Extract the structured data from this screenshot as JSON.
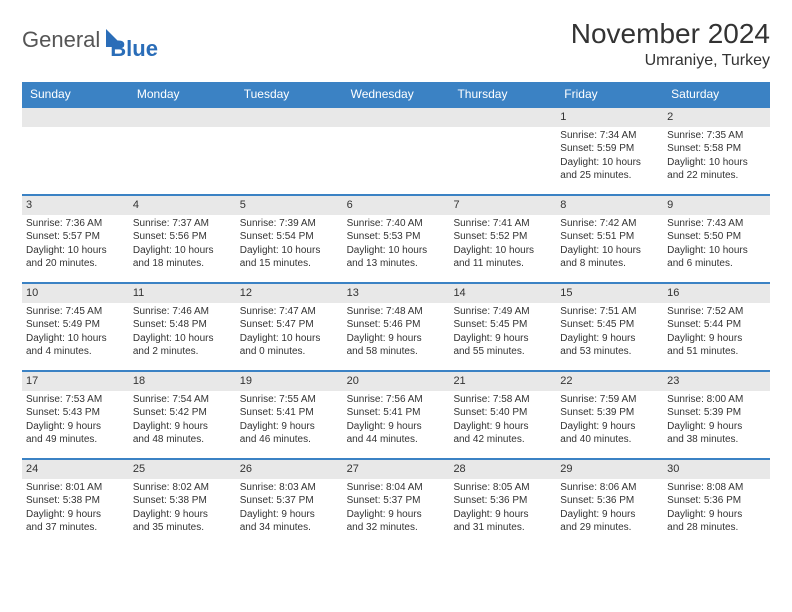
{
  "logo": {
    "general": "General",
    "blue": "Blue"
  },
  "title": "November 2024",
  "location": "Umraniye, Turkey",
  "colors": {
    "header_bg": "#3b82c4",
    "header_text": "#ffffff",
    "daynum_bg": "#e8e8e8",
    "border": "#3b82c4",
    "text": "#333333",
    "logo_blue": "#2a6db8"
  },
  "fonts": {
    "title_size": 28,
    "location_size": 16,
    "header_size": 12,
    "daynum_size": 11,
    "body_size": 10
  },
  "dayNames": [
    "Sunday",
    "Monday",
    "Tuesday",
    "Wednesday",
    "Thursday",
    "Friday",
    "Saturday"
  ],
  "weeks": [
    [
      null,
      null,
      null,
      null,
      null,
      {
        "n": "1",
        "sr": "Sunrise: 7:34 AM",
        "ss": "Sunset: 5:59 PM",
        "d1": "Daylight: 10 hours",
        "d2": "and 25 minutes."
      },
      {
        "n": "2",
        "sr": "Sunrise: 7:35 AM",
        "ss": "Sunset: 5:58 PM",
        "d1": "Daylight: 10 hours",
        "d2": "and 22 minutes."
      }
    ],
    [
      {
        "n": "3",
        "sr": "Sunrise: 7:36 AM",
        "ss": "Sunset: 5:57 PM",
        "d1": "Daylight: 10 hours",
        "d2": "and 20 minutes."
      },
      {
        "n": "4",
        "sr": "Sunrise: 7:37 AM",
        "ss": "Sunset: 5:56 PM",
        "d1": "Daylight: 10 hours",
        "d2": "and 18 minutes."
      },
      {
        "n": "5",
        "sr": "Sunrise: 7:39 AM",
        "ss": "Sunset: 5:54 PM",
        "d1": "Daylight: 10 hours",
        "d2": "and 15 minutes."
      },
      {
        "n": "6",
        "sr": "Sunrise: 7:40 AM",
        "ss": "Sunset: 5:53 PM",
        "d1": "Daylight: 10 hours",
        "d2": "and 13 minutes."
      },
      {
        "n": "7",
        "sr": "Sunrise: 7:41 AM",
        "ss": "Sunset: 5:52 PM",
        "d1": "Daylight: 10 hours",
        "d2": "and 11 minutes."
      },
      {
        "n": "8",
        "sr": "Sunrise: 7:42 AM",
        "ss": "Sunset: 5:51 PM",
        "d1": "Daylight: 10 hours",
        "d2": "and 8 minutes."
      },
      {
        "n": "9",
        "sr": "Sunrise: 7:43 AM",
        "ss": "Sunset: 5:50 PM",
        "d1": "Daylight: 10 hours",
        "d2": "and 6 minutes."
      }
    ],
    [
      {
        "n": "10",
        "sr": "Sunrise: 7:45 AM",
        "ss": "Sunset: 5:49 PM",
        "d1": "Daylight: 10 hours",
        "d2": "and 4 minutes."
      },
      {
        "n": "11",
        "sr": "Sunrise: 7:46 AM",
        "ss": "Sunset: 5:48 PM",
        "d1": "Daylight: 10 hours",
        "d2": "and 2 minutes."
      },
      {
        "n": "12",
        "sr": "Sunrise: 7:47 AM",
        "ss": "Sunset: 5:47 PM",
        "d1": "Daylight: 10 hours",
        "d2": "and 0 minutes."
      },
      {
        "n": "13",
        "sr": "Sunrise: 7:48 AM",
        "ss": "Sunset: 5:46 PM",
        "d1": "Daylight: 9 hours",
        "d2": "and 58 minutes."
      },
      {
        "n": "14",
        "sr": "Sunrise: 7:49 AM",
        "ss": "Sunset: 5:45 PM",
        "d1": "Daylight: 9 hours",
        "d2": "and 55 minutes."
      },
      {
        "n": "15",
        "sr": "Sunrise: 7:51 AM",
        "ss": "Sunset: 5:45 PM",
        "d1": "Daylight: 9 hours",
        "d2": "and 53 minutes."
      },
      {
        "n": "16",
        "sr": "Sunrise: 7:52 AM",
        "ss": "Sunset: 5:44 PM",
        "d1": "Daylight: 9 hours",
        "d2": "and 51 minutes."
      }
    ],
    [
      {
        "n": "17",
        "sr": "Sunrise: 7:53 AM",
        "ss": "Sunset: 5:43 PM",
        "d1": "Daylight: 9 hours",
        "d2": "and 49 minutes."
      },
      {
        "n": "18",
        "sr": "Sunrise: 7:54 AM",
        "ss": "Sunset: 5:42 PM",
        "d1": "Daylight: 9 hours",
        "d2": "and 48 minutes."
      },
      {
        "n": "19",
        "sr": "Sunrise: 7:55 AM",
        "ss": "Sunset: 5:41 PM",
        "d1": "Daylight: 9 hours",
        "d2": "and 46 minutes."
      },
      {
        "n": "20",
        "sr": "Sunrise: 7:56 AM",
        "ss": "Sunset: 5:41 PM",
        "d1": "Daylight: 9 hours",
        "d2": "and 44 minutes."
      },
      {
        "n": "21",
        "sr": "Sunrise: 7:58 AM",
        "ss": "Sunset: 5:40 PM",
        "d1": "Daylight: 9 hours",
        "d2": "and 42 minutes."
      },
      {
        "n": "22",
        "sr": "Sunrise: 7:59 AM",
        "ss": "Sunset: 5:39 PM",
        "d1": "Daylight: 9 hours",
        "d2": "and 40 minutes."
      },
      {
        "n": "23",
        "sr": "Sunrise: 8:00 AM",
        "ss": "Sunset: 5:39 PM",
        "d1": "Daylight: 9 hours",
        "d2": "and 38 minutes."
      }
    ],
    [
      {
        "n": "24",
        "sr": "Sunrise: 8:01 AM",
        "ss": "Sunset: 5:38 PM",
        "d1": "Daylight: 9 hours",
        "d2": "and 37 minutes."
      },
      {
        "n": "25",
        "sr": "Sunrise: 8:02 AM",
        "ss": "Sunset: 5:38 PM",
        "d1": "Daylight: 9 hours",
        "d2": "and 35 minutes."
      },
      {
        "n": "26",
        "sr": "Sunrise: 8:03 AM",
        "ss": "Sunset: 5:37 PM",
        "d1": "Daylight: 9 hours",
        "d2": "and 34 minutes."
      },
      {
        "n": "27",
        "sr": "Sunrise: 8:04 AM",
        "ss": "Sunset: 5:37 PM",
        "d1": "Daylight: 9 hours",
        "d2": "and 32 minutes."
      },
      {
        "n": "28",
        "sr": "Sunrise: 8:05 AM",
        "ss": "Sunset: 5:36 PM",
        "d1": "Daylight: 9 hours",
        "d2": "and 31 minutes."
      },
      {
        "n": "29",
        "sr": "Sunrise: 8:06 AM",
        "ss": "Sunset: 5:36 PM",
        "d1": "Daylight: 9 hours",
        "d2": "and 29 minutes."
      },
      {
        "n": "30",
        "sr": "Sunrise: 8:08 AM",
        "ss": "Sunset: 5:36 PM",
        "d1": "Daylight: 9 hours",
        "d2": "and 28 minutes."
      }
    ]
  ]
}
